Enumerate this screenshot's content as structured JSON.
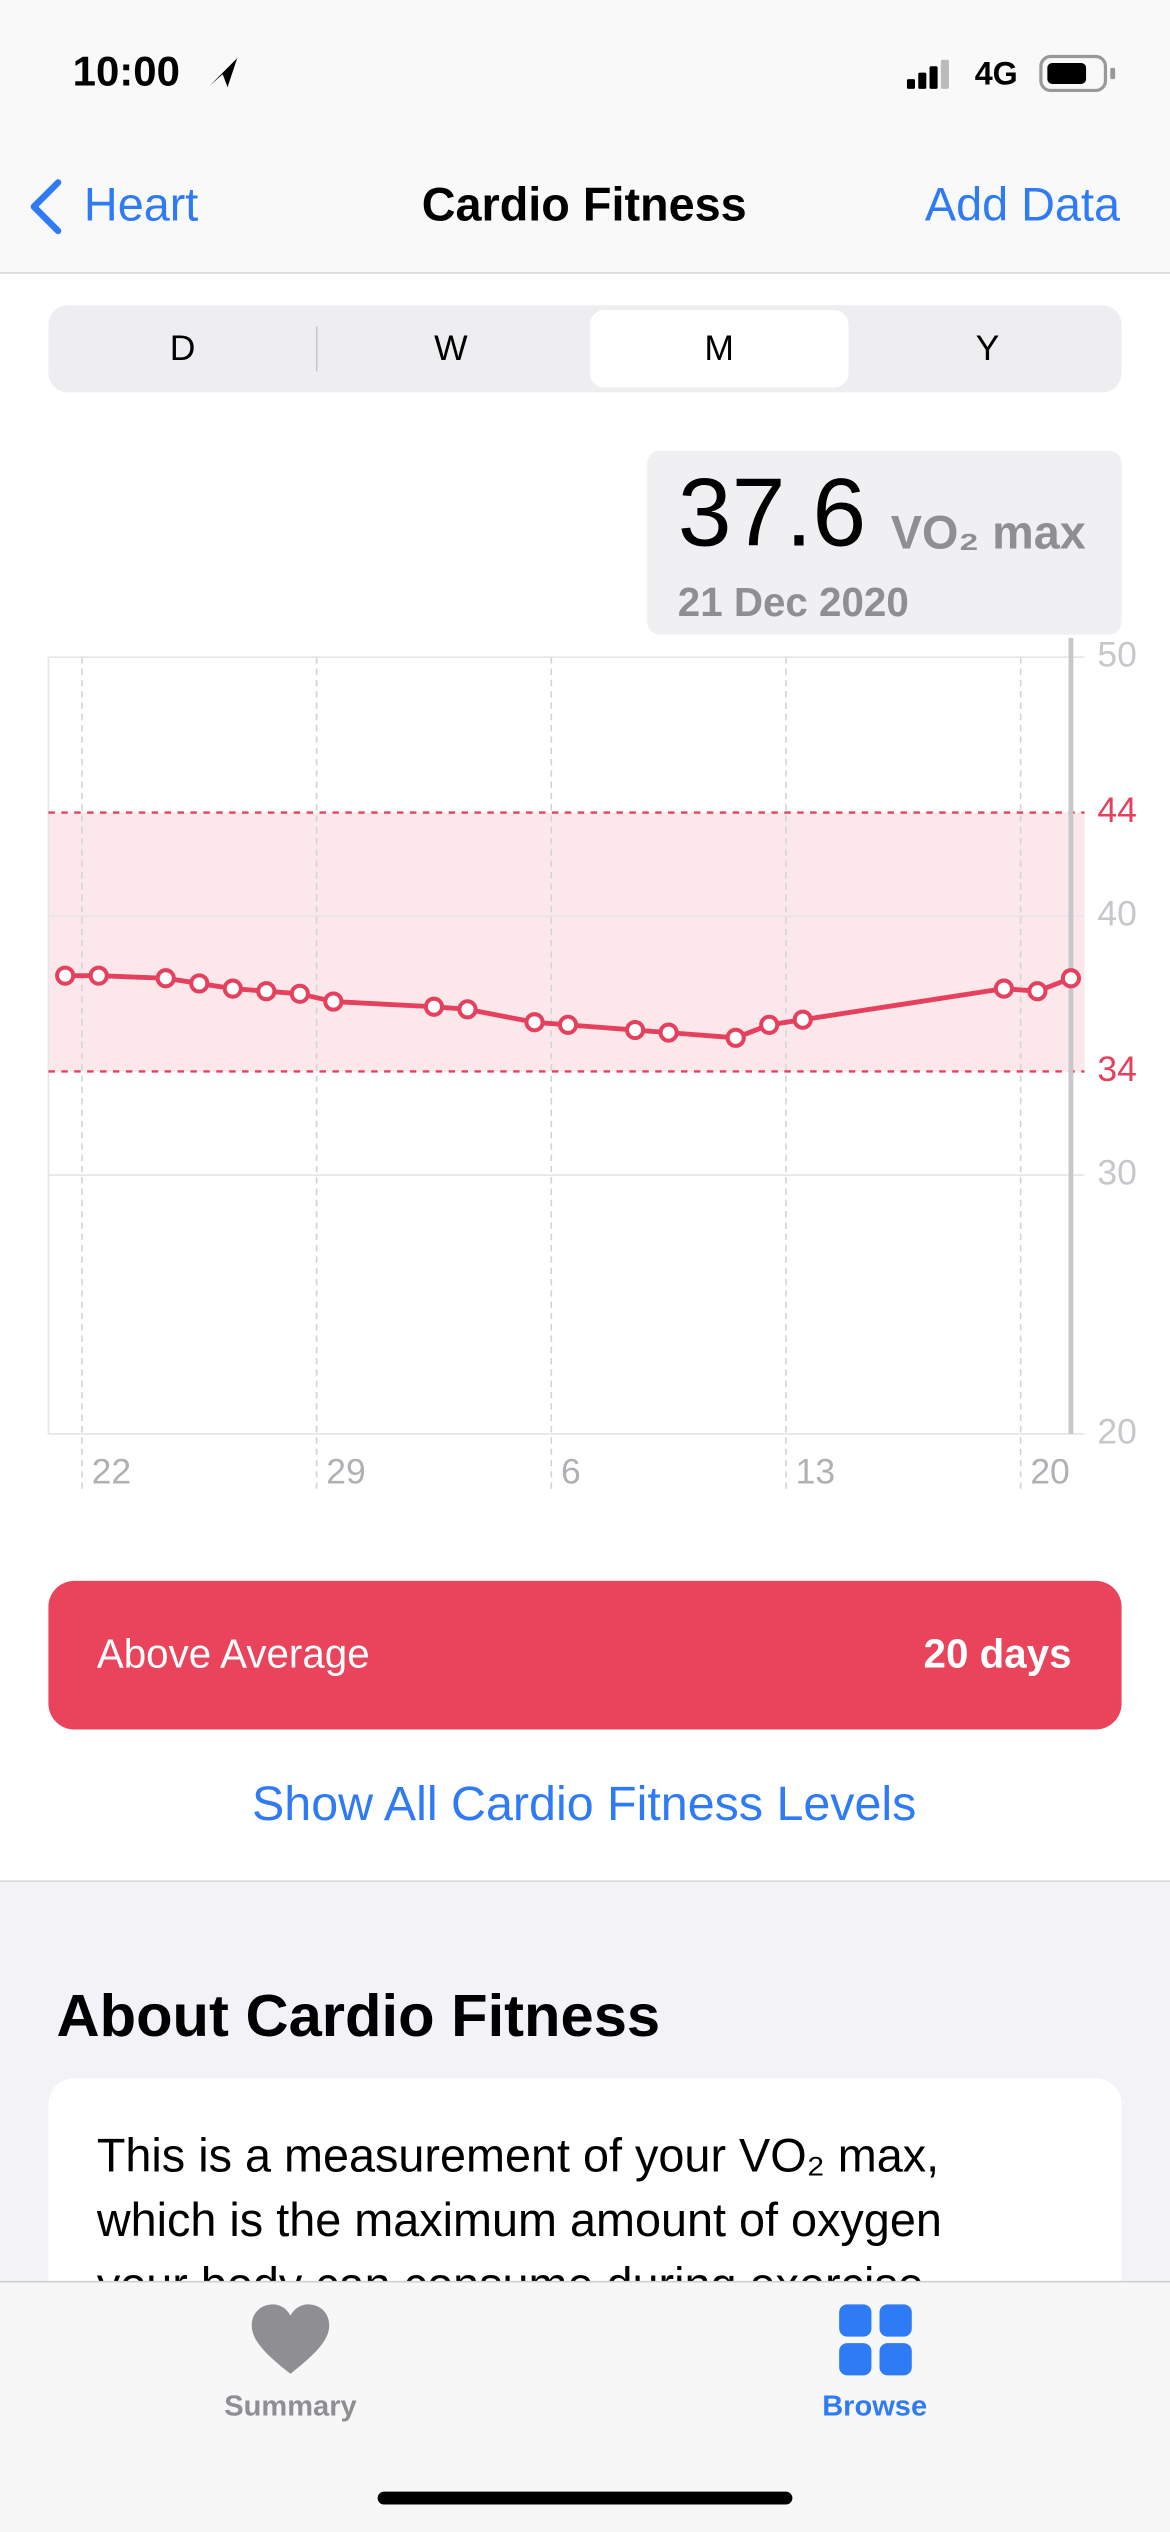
{
  "status_bar": {
    "time": "10:00",
    "network": "4G"
  },
  "nav": {
    "back": "Heart",
    "title": "Cardio Fitness",
    "action": "Add Data"
  },
  "segments": [
    "D",
    "W",
    "M",
    "Y"
  ],
  "selected_segment": 2,
  "summary": {
    "value": "37.6",
    "unit": "VO₂ max",
    "date": "21 Dec 2020"
  },
  "chart_data": {
    "type": "line",
    "color": "#e5405e",
    "x": [
      0.5,
      1.5,
      3.5,
      4.5,
      5.5,
      6.5,
      7.5,
      8.5,
      11.5,
      12.5,
      14.5,
      15.5,
      17.5,
      18.5,
      20.5,
      21.5,
      22.5,
      28.5,
      29.5,
      30.5
    ],
    "values": [
      37.7,
      37.7,
      37.6,
      37.4,
      37.2,
      37.1,
      37.0,
      36.7,
      36.5,
      36.4,
      35.9,
      35.8,
      35.6,
      35.5,
      35.3,
      35.8,
      36.0,
      37.2,
      37.1,
      37.6
    ],
    "xlim": [
      0,
      31
    ],
    "xticks": [
      {
        "value": 1,
        "label": "22"
      },
      {
        "value": 8,
        "label": "29"
      },
      {
        "value": 15,
        "label": "6"
      },
      {
        "value": 22,
        "label": "13"
      },
      {
        "value": 29,
        "label": "20"
      }
    ],
    "ylim": [
      20,
      50
    ],
    "yticks": [
      20,
      30,
      40,
      50
    ],
    "reference_lines": [
      44,
      34
    ],
    "selected_index": 19,
    "grid": true
  },
  "level": {
    "label": "Above Average",
    "duration": "20 days"
  },
  "link": "Show All Cardio Fitness Levels",
  "about": {
    "heading": "About Cardio Fitness",
    "lines": [
      "This is a measurement of your VO₂ max,",
      "which is the maximum amount of oxygen",
      "your body can consume during exercise"
    ]
  },
  "tab_bar": [
    {
      "label": "Summary"
    },
    {
      "label": "Browse"
    }
  ]
}
